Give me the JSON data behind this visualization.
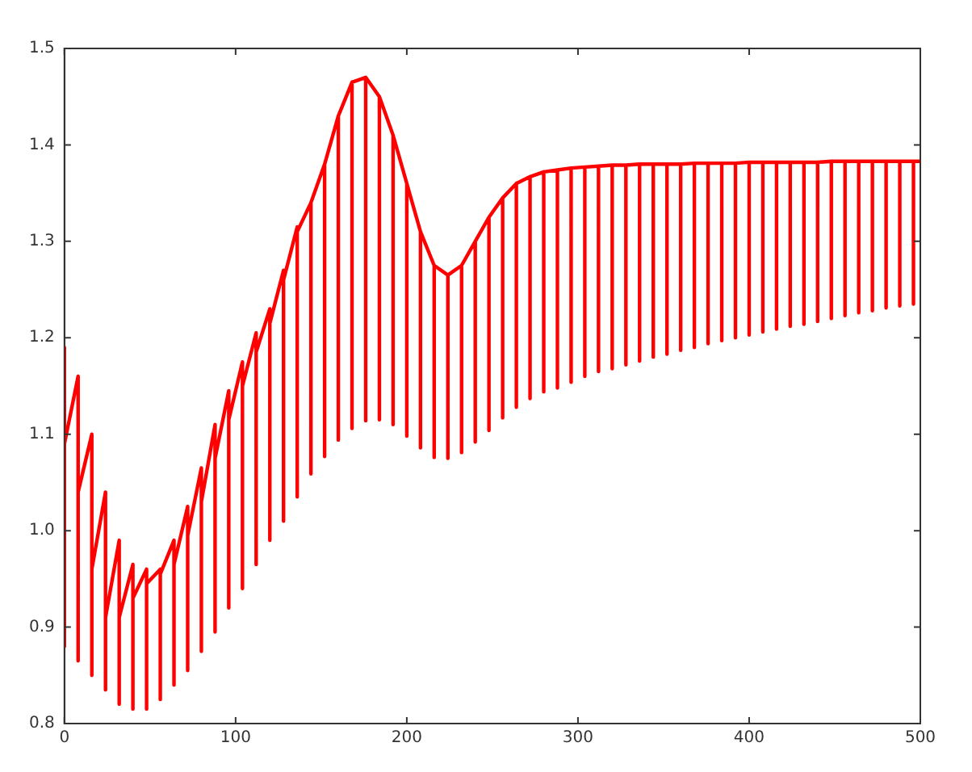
{
  "chart_data": {
    "type": "line",
    "xlim": [
      0,
      500
    ],
    "xticks": [
      0,
      100,
      200,
      300,
      400,
      500
    ],
    "ylim": [
      0.8,
      1.5
    ],
    "yticks": [
      0.8,
      0.9,
      {
        "value": 1,
        "label": "1.0"
      },
      1.1,
      1.2,
      1.3,
      1.4,
      1.5
    ],
    "grid": false,
    "legend": false,
    "marker": "none",
    "line_style": "solid",
    "series": [
      {
        "color": "#ff0000",
        "x": [
          0,
          0,
          0,
          8,
          8,
          8,
          16,
          16,
          16,
          24,
          24,
          24,
          32,
          32,
          32,
          40,
          40,
          40,
          48,
          48,
          48,
          56,
          56,
          56,
          64,
          64,
          64,
          72,
          72,
          72,
          80,
          80,
          80,
          88,
          88,
          88,
          96,
          96,
          96,
          104,
          104,
          104,
          112,
          112,
          112,
          120,
          120,
          120,
          128,
          128,
          128,
          136,
          136,
          136,
          144,
          144,
          144,
          152,
          152,
          152,
          160,
          160,
          160,
          168,
          168,
          168,
          176,
          176,
          176,
          184,
          184,
          184,
          192,
          192,
          192,
          200,
          200,
          200,
          208,
          208,
          208,
          216,
          216,
          216,
          224,
          224,
          224,
          232,
          232,
          232,
          240,
          240,
          240,
          248,
          248,
          248,
          256,
          256,
          256,
          264,
          264,
          264,
          272,
          272,
          272,
          280,
          280,
          280,
          288,
          288,
          288,
          296,
          296,
          296,
          304,
          304,
          304,
          312,
          312,
          312,
          320,
          320,
          320,
          328,
          328,
          328,
          336,
          336,
          336,
          344,
          344,
          344,
          352,
          352,
          352,
          360,
          360,
          360,
          368,
          368,
          368,
          376,
          376,
          376,
          384,
          384,
          384,
          392,
          392,
          392,
          400,
          400,
          400,
          408,
          408,
          408,
          416,
          416,
          416,
          424,
          424,
          424,
          432,
          432,
          432,
          440,
          440,
          440,
          448,
          448,
          448,
          456,
          456,
          456,
          464,
          464,
          464,
          472,
          472,
          472,
          480,
          480,
          480,
          488,
          488,
          488,
          496,
          496,
          496,
          500
        ],
        "values": [
          1.19,
          0.88,
          1.09,
          1.16,
          0.865,
          1.04,
          1.1,
          0.85,
          0.96,
          1.04,
          0.835,
          0.91,
          0.99,
          0.82,
          0.91,
          0.965,
          0.815,
          0.93,
          0.96,
          0.815,
          0.945,
          0.96,
          0.825,
          0.955,
          0.99,
          0.84,
          0.965,
          1.025,
          0.855,
          0.995,
          1.065,
          0.875,
          1.03,
          1.11,
          0.895,
          1.075,
          1.145,
          0.92,
          1.115,
          1.175,
          0.94,
          1.15,
          1.205,
          0.965,
          1.185,
          1.23,
          0.99,
          1.215,
          1.27,
          1.01,
          1.26,
          1.315,
          1.035,
          1.31,
          1.34,
          1.059,
          1.34,
          1.38,
          1.077,
          1.38,
          1.43,
          1.094,
          1.43,
          1.465,
          1.106,
          1.465,
          1.47,
          1.114,
          1.47,
          1.45,
          1.115,
          1.45,
          1.41,
          1.11,
          1.41,
          1.36,
          1.098,
          1.36,
          1.31,
          1.086,
          1.31,
          1.275,
          1.076,
          1.275,
          1.265,
          1.075,
          1.265,
          1.275,
          1.081,
          1.275,
          1.3,
          1.092,
          1.3,
          1.325,
          1.104,
          1.325,
          1.345,
          1.117,
          1.345,
          1.36,
          1.128,
          1.36,
          1.367,
          1.137,
          1.367,
          1.372,
          1.144,
          1.372,
          1.374,
          1.148,
          1.374,
          1.376,
          1.154,
          1.376,
          1.377,
          1.16,
          1.377,
          1.378,
          1.165,
          1.378,
          1.379,
          1.168,
          1.379,
          1.379,
          1.172,
          1.379,
          1.38,
          1.176,
          1.38,
          1.38,
          1.18,
          1.38,
          1.38,
          1.183,
          1.38,
          1.38,
          1.187,
          1.38,
          1.381,
          1.19,
          1.381,
          1.381,
          1.194,
          1.381,
          1.381,
          1.197,
          1.381,
          1.381,
          1.2,
          1.381,
          1.382,
          1.203,
          1.382,
          1.382,
          1.206,
          1.382,
          1.382,
          1.209,
          1.382,
          1.382,
          1.212,
          1.382,
          1.382,
          1.214,
          1.382,
          1.382,
          1.217,
          1.382,
          1.383,
          1.22,
          1.383,
          1.383,
          1.223,
          1.383,
          1.383,
          1.226,
          1.383,
          1.383,
          1.228,
          1.383,
          1.383,
          1.231,
          1.383,
          1.383,
          1.233,
          1.383,
          1.383,
          1.235,
          1.383,
          1.383
        ]
      }
    ]
  }
}
